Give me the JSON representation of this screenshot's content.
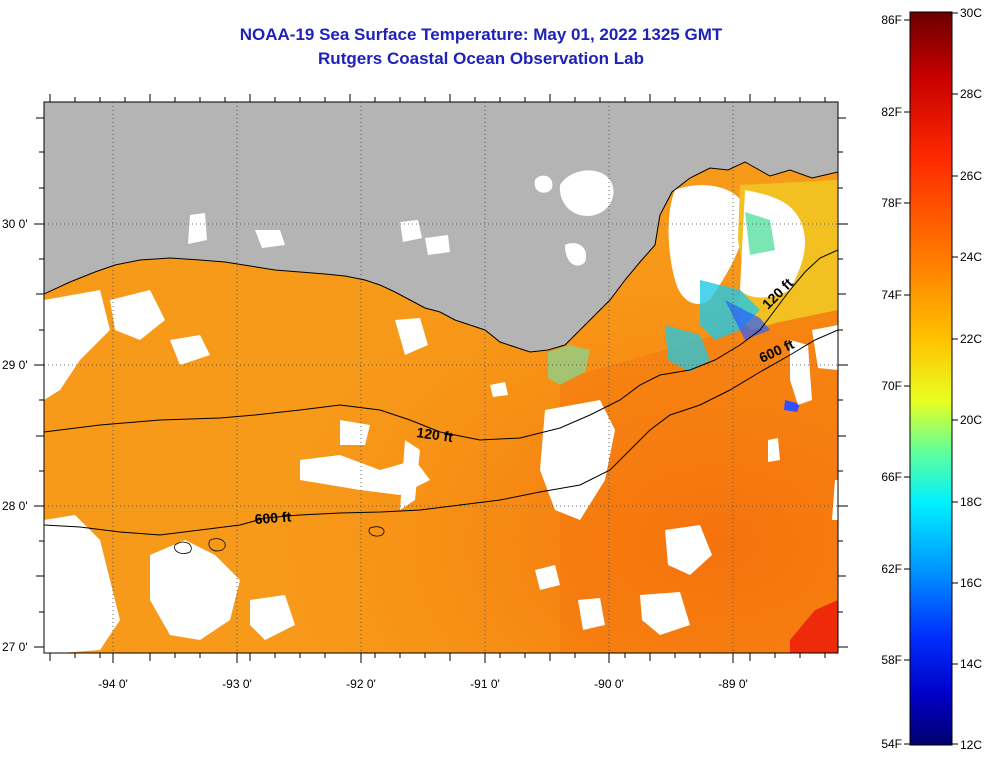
{
  "title": {
    "line1": "NOAA-19 Sea Surface Temperature:  May 01, 2022 1325 GMT",
    "line2": "Rutgers Coastal Ocean Observation Lab"
  },
  "map": {
    "longitude_labels": [
      "-94 0'",
      "-93 0'",
      "-92 0'",
      "-91 0'",
      "-90 0'",
      "-89 0'"
    ],
    "latitude_labels": [
      "30 0'",
      "29 0'",
      "28 0'",
      "27 0'"
    ],
    "contour_labels": [
      {
        "text": "120 ft",
        "id": "c120a"
      },
      {
        "text": "600 ft",
        "id": "c600a"
      },
      {
        "text": "120 ft",
        "id": "c120b"
      },
      {
        "text": "600 ft",
        "id": "c600b"
      }
    ],
    "colors": {
      "land": "#b4b4b4",
      "cloud": "#ffffff",
      "water_warm": "#f7820f",
      "water_mid": "#f9a41c",
      "water_cool": "#20c8e6"
    }
  },
  "colorbar": {
    "fahrenheit_labels": [
      "86F",
      "82F",
      "78F",
      "74F",
      "70F",
      "66F",
      "62F",
      "58F",
      "54F"
    ],
    "celsius_labels": [
      "30C",
      "28C",
      "26C",
      "24C",
      "22C",
      "20C",
      "18C",
      "16C",
      "14C",
      "12C"
    ],
    "gradient_stops": [
      "#6b0000",
      "#c80000",
      "#ff2a00",
      "#ff7d00",
      "#ffc400",
      "#e8ff20",
      "#60ff9a",
      "#00f0ff",
      "#0096ff",
      "#0030ff",
      "#0000c8",
      "#00006e"
    ]
  }
}
